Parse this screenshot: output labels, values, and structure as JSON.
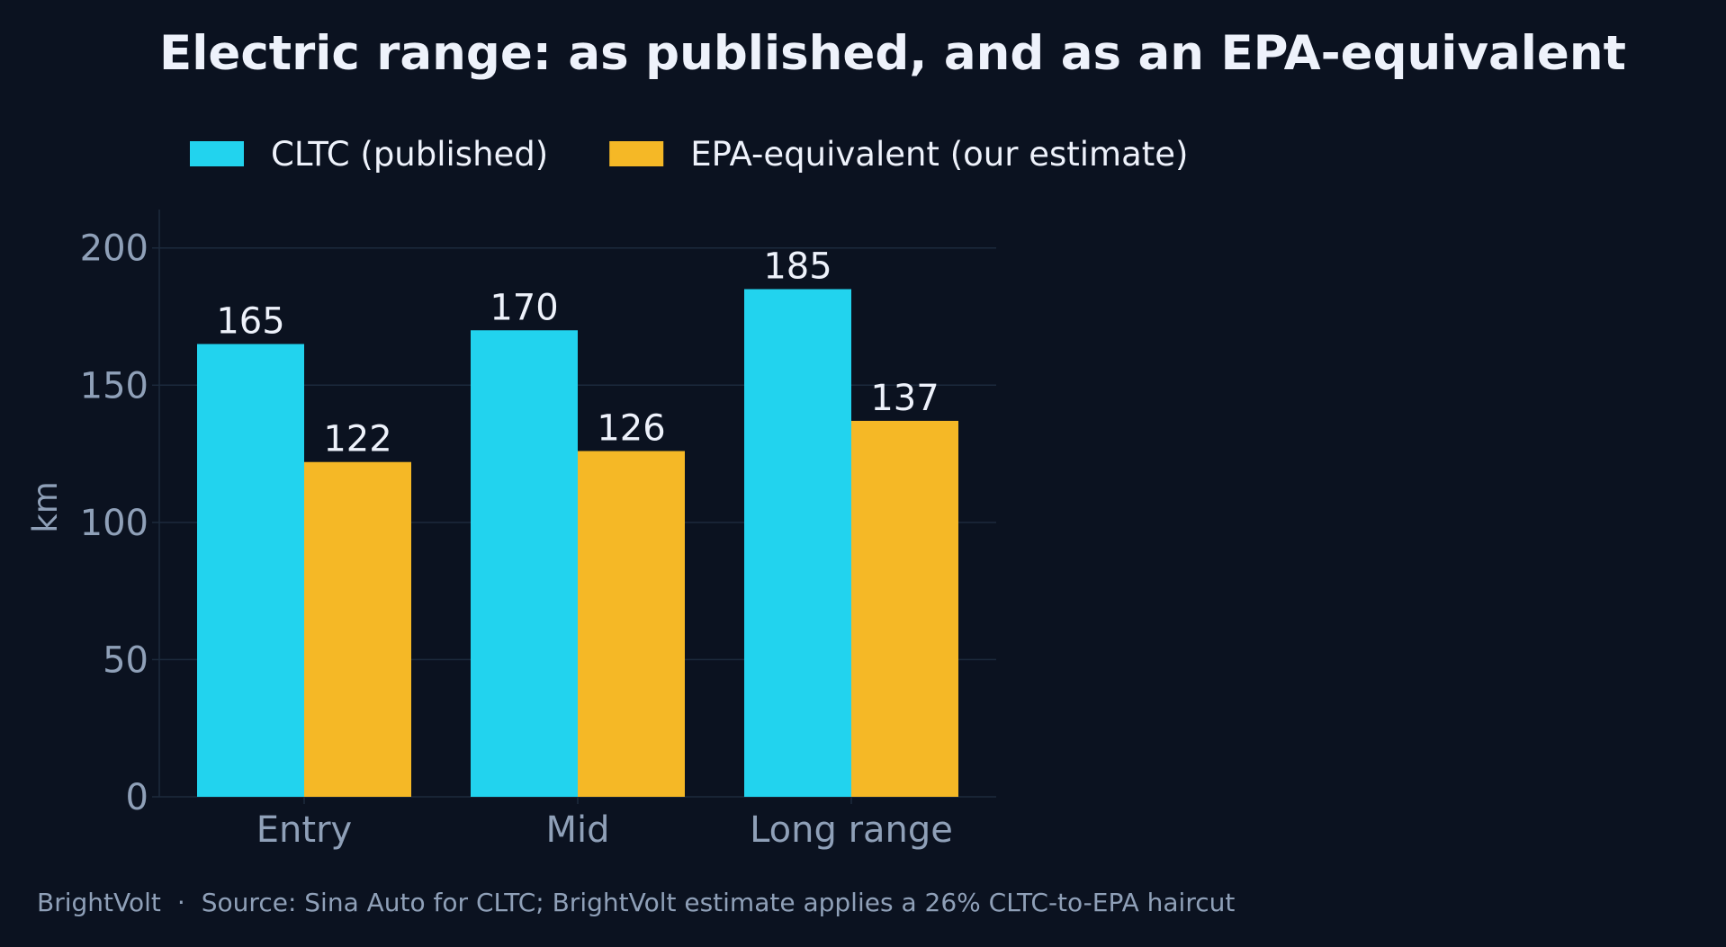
{
  "chart_data": {
    "type": "bar",
    "title": "Electric range: as published, and as an EPA-equivalent",
    "categories": [
      "Entry",
      "Mid",
      "Long range"
    ],
    "series": [
      {
        "name": "CLTC (published)",
        "values": [
          165,
          170,
          185
        ],
        "color": "#22d3ee"
      },
      {
        "name": "EPA-equivalent (our estimate)",
        "values": [
          122,
          126,
          137
        ],
        "color": "#f5b826"
      }
    ],
    "xlabel": "",
    "ylabel": "km",
    "ylim": [
      0,
      214
    ],
    "yticks": [
      0,
      50,
      100,
      150,
      200
    ],
    "grid": "horizontal",
    "legend_position": "top-left"
  },
  "footer": {
    "brand": "BrightVolt",
    "separator": "·",
    "source": "Source: Sina Auto for CLTC; BrightVolt estimate applies a 26% CLTC-to-EPA haircut"
  },
  "colors": {
    "background": "#0b1220",
    "grid": "#1c2a3c",
    "text": "#eef2fb",
    "muted_text": "#8fa0b8"
  }
}
